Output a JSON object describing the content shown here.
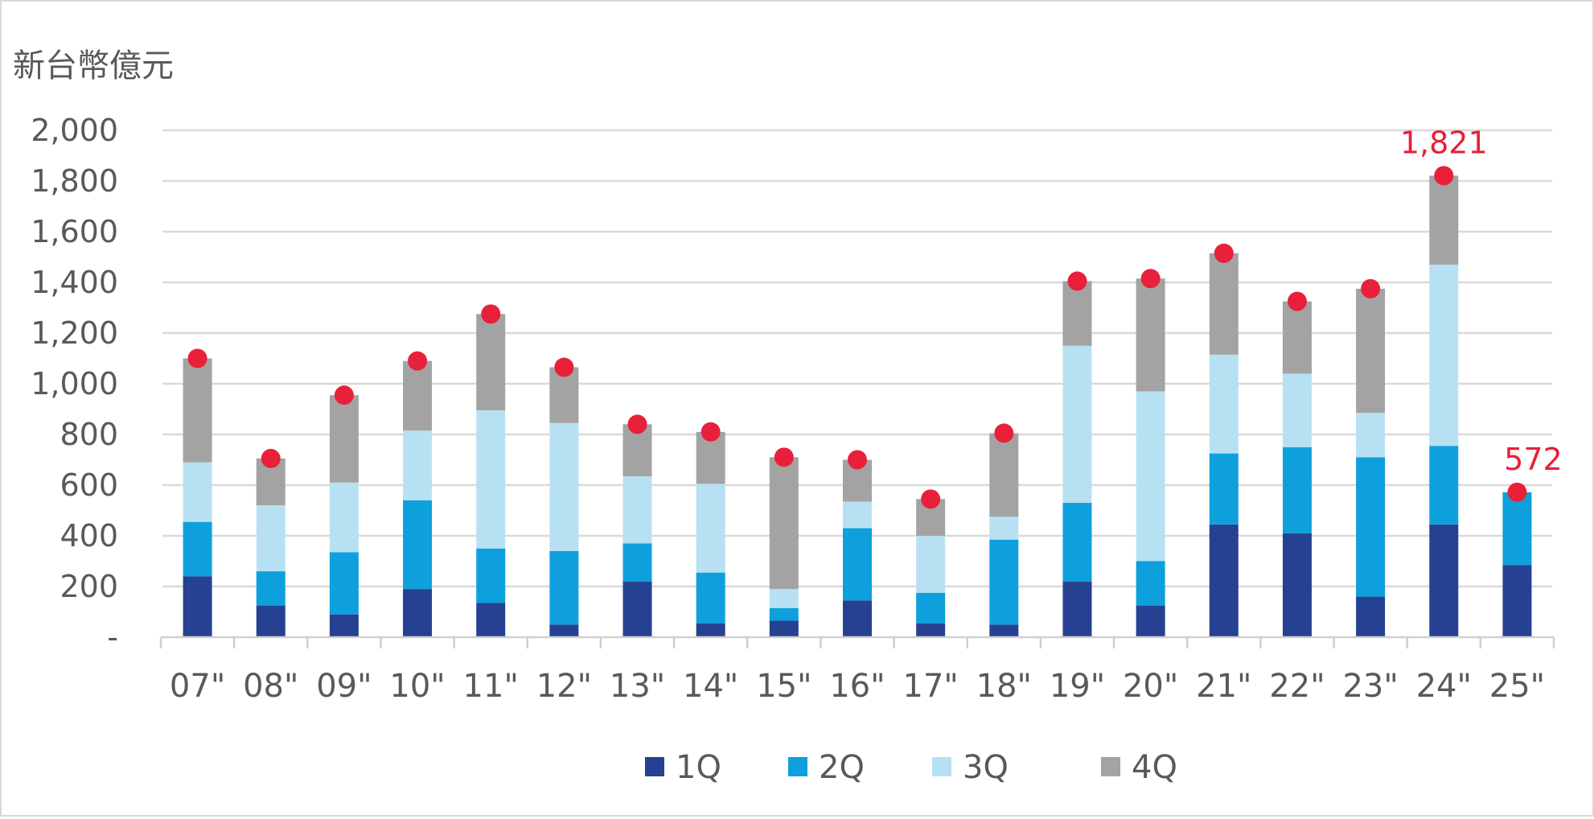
{
  "chart_data": {
    "type": "bar",
    "stacked": true,
    "unit_label": "新台幣億元",
    "categories": [
      "07\"",
      "08\"",
      "09\"",
      "10\"",
      "11\"",
      "12\"",
      "13\"",
      "14\"",
      "15\"",
      "16\"",
      "17\"",
      "18\"",
      "19\"",
      "20\"",
      "21\"",
      "22\"",
      "23\"",
      "24\"",
      "25\""
    ],
    "series": [
      {
        "name": "1Q",
        "color": "#264191",
        "values": [
          240,
          125,
          90,
          190,
          135,
          50,
          220,
          55,
          65,
          145,
          55,
          50,
          220,
          125,
          445,
          410,
          160,
          445,
          285
        ]
      },
      {
        "name": "2Q",
        "color": "#0ea0dc",
        "values": [
          215,
          135,
          245,
          350,
          215,
          290,
          150,
          200,
          50,
          285,
          120,
          335,
          310,
          175,
          280,
          340,
          550,
          310,
          287
        ]
      },
      {
        "name": "3Q",
        "color": "#b7e1f3",
        "values": [
          235,
          260,
          275,
          275,
          545,
          505,
          265,
          350,
          75,
          105,
          225,
          90,
          620,
          670,
          390,
          290,
          175,
          715,
          0
        ]
      },
      {
        "name": "4Q",
        "color": "#a3a3a3",
        "values": [
          410,
          185,
          345,
          275,
          380,
          220,
          205,
          205,
          520,
          165,
          145,
          330,
          255,
          445,
          400,
          285,
          490,
          351,
          0
        ]
      }
    ],
    "totals": [
      1100,
      705,
      955,
      1090,
      1275,
      1065,
      840,
      810,
      710,
      700,
      545,
      805,
      1405,
      1415,
      1515,
      1325,
      1375,
      1821,
      572
    ],
    "total_marker_color": "#e8203a",
    "callouts": [
      {
        "category_index": 17,
        "label": "1,821"
      },
      {
        "category_index": 18,
        "label": "572"
      }
    ],
    "ylim": [
      0,
      2000
    ],
    "yticks": [
      0,
      200,
      400,
      600,
      800,
      1000,
      1200,
      1400,
      1600,
      1800,
      2000
    ],
    "ytick_labels": [
      "-",
      "200",
      "400",
      "600",
      "800",
      "1,000",
      "1,200",
      "1,400",
      "1,600",
      "1,800",
      "2,000"
    ],
    "grid": true,
    "legend_position": "bottom"
  }
}
